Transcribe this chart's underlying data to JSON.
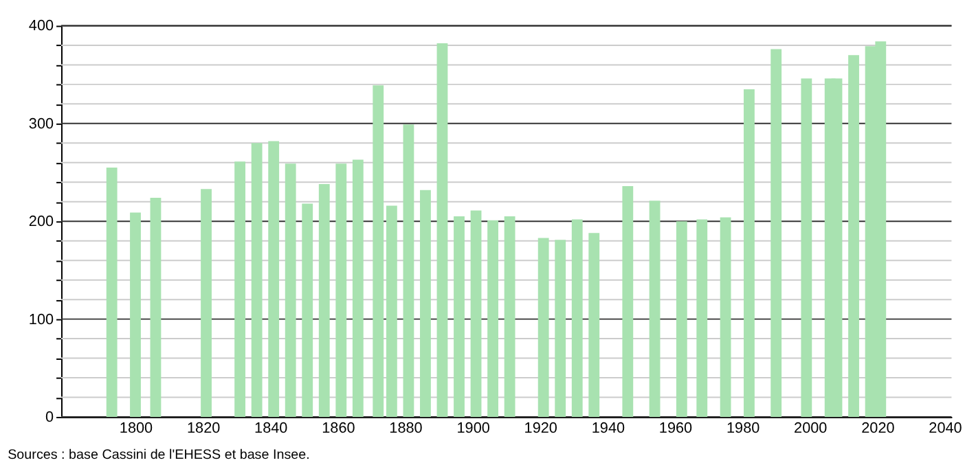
{
  "chart_data": {
    "type": "bar",
    "x": [
      1793,
      1800,
      1806,
      1821,
      1831,
      1836,
      1841,
      1846,
      1851,
      1856,
      1861,
      1866,
      1872,
      1876,
      1881,
      1886,
      1891,
      1896,
      1901,
      1906,
      1911,
      1921,
      1926,
      1931,
      1936,
      1946,
      1954,
      1962,
      1968,
      1975,
      1982,
      1990,
      1999,
      2006,
      2008,
      2013,
      2018,
      2021
    ],
    "values": [
      255,
      209,
      224,
      233,
      261,
      280,
      282,
      259,
      218,
      238,
      259,
      263,
      339,
      216,
      299,
      232,
      382,
      205,
      211,
      201,
      205,
      183,
      181,
      202,
      188,
      236,
      221,
      200,
      202,
      204,
      335,
      376,
      346,
      346,
      346,
      370,
      379,
      384
    ],
    "color": "#a8e2b0",
    "xlim": [
      1780,
      2040
    ],
    "xticks": [
      1800,
      1820,
      1840,
      1860,
      1880,
      1900,
      1920,
      1940,
      1960,
      1980,
      2000,
      2020,
      2040
    ],
    "ylim": [
      0,
      400
    ],
    "yticks": [
      0,
      {
        "value": 20,
        "label": null
      },
      {
        "value": 40,
        "label": null
      },
      {
        "value": 60,
        "label": null
      },
      {
        "value": 80,
        "label": null
      },
      100,
      {
        "value": 120,
        "label": null
      },
      {
        "value": 140,
        "label": null
      },
      {
        "value": 160,
        "label": null
      },
      {
        "value": 180,
        "label": null
      },
      200,
      {
        "value": 220,
        "label": null
      },
      {
        "value": 240,
        "label": null
      },
      {
        "value": 260,
        "label": null
      },
      {
        "value": 280,
        "label": null
      },
      300,
      {
        "value": 320,
        "label": null
      },
      {
        "value": 340,
        "label": null
      },
      {
        "value": 360,
        "label": null
      },
      {
        "value": 380,
        "label": null
      },
      400
    ],
    "grid": "y",
    "annotations": [
      "Sources : base Cassini de l'EHESS et base Insee."
    ]
  }
}
